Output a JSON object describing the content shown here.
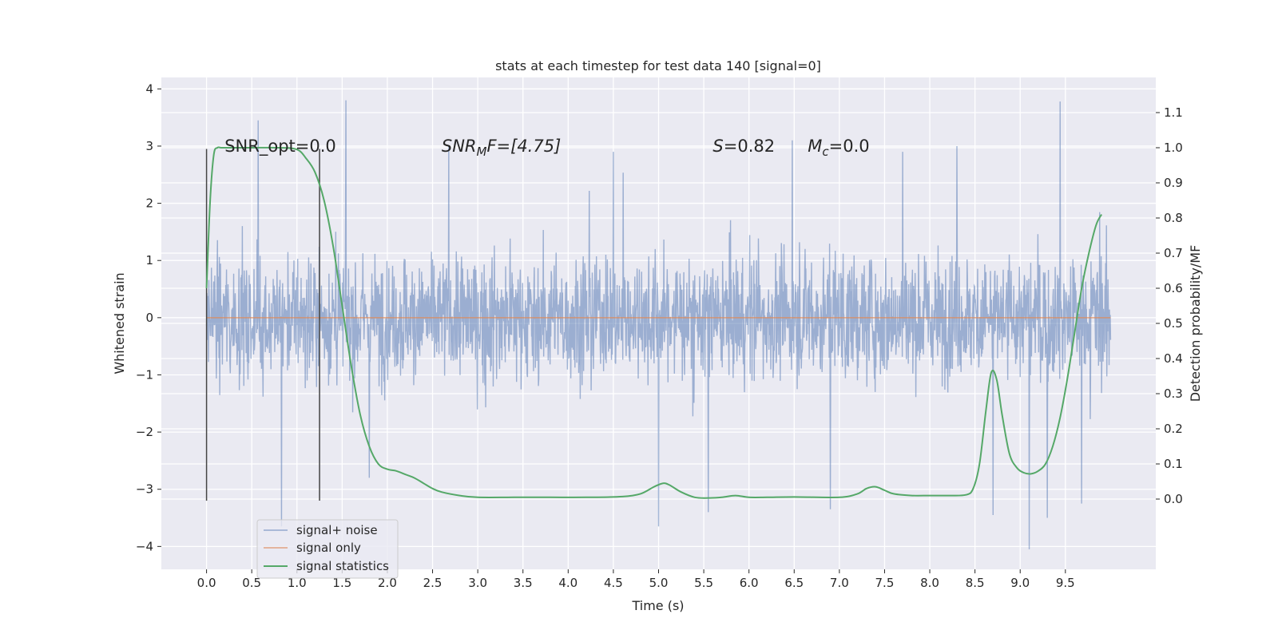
{
  "chart_data": {
    "type": "line",
    "title": "stats at each timestep for test data 140 [signal=0]",
    "xlabel": "Time (s)",
    "ylabel": "Whitened strain",
    "ylabel_right": "Detection probability/MF",
    "xlim": [
      -0.5,
      10.5
    ],
    "ylim": [
      -4.4,
      4.2
    ],
    "ylim_right": [
      -0.2,
      1.2
    ],
    "grid": true,
    "xticks": [
      "0.0",
      "0.5",
      "1.0",
      "1.5",
      "2.0",
      "2.5",
      "3.0",
      "3.5",
      "4.0",
      "4.5",
      "5.0",
      "5.5",
      "6.0",
      "6.5",
      "7.0",
      "7.5",
      "8.0",
      "8.5",
      "9.0",
      "9.5"
    ],
    "yticks_left": [
      "4",
      "3",
      "2",
      "1",
      "0",
      "−1",
      "−2",
      "−3",
      "−4"
    ],
    "yticks_right": [
      "1.1",
      "1.0",
      "0.9",
      "0.8",
      "0.7",
      "0.6",
      "0.5",
      "0.4",
      "0.3",
      "0.2",
      "0.1",
      "0.0"
    ],
    "annotations": [
      {
        "text": "SNR_opt=0.0",
        "x": 0.2
      },
      {
        "text": "SNR",
        "sub": "M",
        "tail": "F=[4.75]",
        "x": 2.6,
        "italic": true
      },
      {
        "text": "S",
        "tail": "=0.82",
        "x": 5.6,
        "italic": true
      },
      {
        "text": "M",
        "sub": "c",
        "tail": "=0.0",
        "x": 6.65,
        "italic": true
      }
    ],
    "vlines": [
      0.0,
      1.25
    ],
    "legend": {
      "position": "lower-left",
      "entries": [
        "signal+ noise",
        "signal only",
        "signal statistics"
      ]
    },
    "series": [
      {
        "name": "signal+ noise",
        "color": "#4c72b0",
        "description_type": "noise",
        "x_range": [
          0.0,
          10.0
        ],
        "typical_band": [
          -1.3,
          1.3
        ],
        "spikes_up": [
          [
            0.57,
            3.45
          ],
          [
            1.54,
            3.8
          ],
          [
            2.68,
            3.0
          ],
          [
            4.5,
            2.9
          ],
          [
            6.48,
            3.1
          ],
          [
            9.44,
            3.78
          ],
          [
            7.7,
            2.9
          ],
          [
            8.3,
            3.0
          ]
        ],
        "spikes_down": [
          [
            0.83,
            -3.65
          ],
          [
            1.8,
            -2.8
          ],
          [
            5.0,
            -3.65
          ],
          [
            5.55,
            -3.4
          ],
          [
            6.9,
            -3.35
          ],
          [
            8.7,
            -3.45
          ],
          [
            9.1,
            -4.05
          ],
          [
            9.3,
            -3.5
          ],
          [
            9.68,
            -3.25
          ]
        ]
      },
      {
        "name": "signal only",
        "color": "#dd8452",
        "x": [
          0.0,
          10.0
        ],
        "y": [
          0.0,
          0.0
        ]
      },
      {
        "name": "signal statistics",
        "color": "#55a868",
        "axis": "right",
        "x": [
          0.0,
          0.04,
          0.08,
          0.12,
          0.16,
          0.22,
          0.3,
          0.5,
          0.8,
          1.0,
          1.1,
          1.2,
          1.3,
          1.4,
          1.5,
          1.6,
          1.7,
          1.8,
          1.9,
          2.0,
          2.1,
          2.2,
          2.3,
          2.4,
          2.5,
          2.6,
          2.8,
          3.0,
          3.4,
          3.8,
          4.2,
          4.6,
          4.8,
          4.95,
          5.05,
          5.12,
          5.25,
          5.4,
          5.55,
          5.7,
          5.85,
          6.0,
          6.2,
          6.5,
          7.0,
          7.2,
          7.3,
          7.4,
          7.5,
          7.6,
          7.8,
          8.0,
          8.2,
          8.4,
          8.48,
          8.55,
          8.62,
          8.68,
          8.74,
          8.8,
          8.88,
          8.96,
          9.04,
          9.12,
          9.2,
          9.28,
          9.36,
          9.44,
          9.52,
          9.6,
          9.68,
          9.76,
          9.84,
          9.9
        ],
        "y": [
          0.6,
          0.85,
          0.98,
          1.0,
          1.0,
          1.0,
          1.0,
          1.0,
          1.0,
          0.995,
          0.97,
          0.93,
          0.85,
          0.72,
          0.55,
          0.38,
          0.24,
          0.15,
          0.1,
          0.085,
          0.08,
          0.07,
          0.06,
          0.045,
          0.03,
          0.02,
          0.01,
          0.005,
          0.005,
          0.005,
          0.005,
          0.007,
          0.015,
          0.035,
          0.045,
          0.04,
          0.02,
          0.005,
          0.003,
          0.005,
          0.01,
          0.005,
          0.005,
          0.006,
          0.005,
          0.015,
          0.03,
          0.035,
          0.025,
          0.015,
          0.01,
          0.01,
          0.01,
          0.012,
          0.03,
          0.1,
          0.25,
          0.36,
          0.34,
          0.24,
          0.13,
          0.09,
          0.075,
          0.072,
          0.08,
          0.1,
          0.15,
          0.23,
          0.34,
          0.47,
          0.6,
          0.7,
          0.78,
          0.81
        ]
      }
    ]
  }
}
